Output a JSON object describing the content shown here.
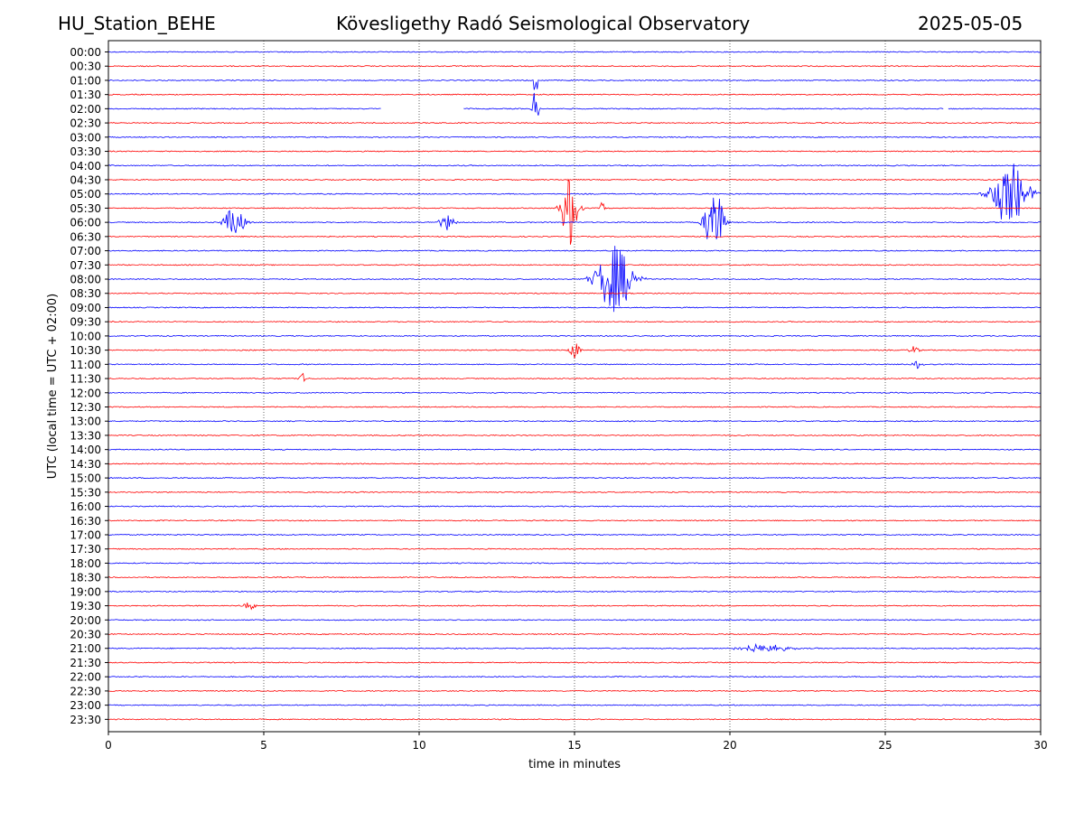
{
  "header": {
    "station": "HU_Station_BEHE",
    "observatory": "Kövesligethy Radó Seismological Observatory",
    "date": "2025-05-05"
  },
  "chart_data": {
    "type": "line",
    "title": "Kövesligethy Radó Seismological Observatory",
    "xlabel": "time in minutes",
    "ylabel": "UTC (local time = UTC + 02:00)",
    "xlim": [
      0,
      30
    ],
    "x_ticks": [
      0,
      5,
      10,
      15,
      20,
      25,
      30
    ],
    "x_grid": "dotted vertical at 5, 10, 15, 20, 25",
    "row_labels": [
      "00:00",
      "00:30",
      "01:00",
      "01:30",
      "02:00",
      "02:30",
      "03:00",
      "03:30",
      "04:00",
      "04:30",
      "05:00",
      "05:30",
      "06:00",
      "06:30",
      "07:00",
      "07:30",
      "08:00",
      "08:30",
      "09:00",
      "09:30",
      "10:00",
      "10:30",
      "11:00",
      "11:30",
      "12:00",
      "12:30",
      "13:00",
      "13:30",
      "14:00",
      "14:30",
      "15:00",
      "15:30",
      "16:00",
      "16:30",
      "17:00",
      "17:30",
      "18:00",
      "18:30",
      "19:00",
      "19:30",
      "20:00",
      "20:30",
      "21:00",
      "21:30",
      "22:00",
      "22:30",
      "23:00",
      "23:30"
    ],
    "row_colors": [
      "#0000ff",
      "#ff0000"
    ],
    "data_gaps": [
      {
        "row": "02:00",
        "from_min": 8.8,
        "to_min": 11.4
      },
      {
        "row": "02:00",
        "from_min": 26.9,
        "to_min": 27.0
      }
    ],
    "events": [
      {
        "row": "01:00",
        "start_min": 13.65,
        "end_min": 13.85,
        "amplitude": 1.7
      },
      {
        "row": "02:00",
        "start_min": 13.6,
        "end_min": 13.9,
        "amplitude": 1.7
      },
      {
        "row": "05:00",
        "start_min": 28.0,
        "end_min": 30.0,
        "amplitude": 2.3
      },
      {
        "row": "05:30",
        "start_min": 14.4,
        "end_min": 15.3,
        "amplitude": 2.8
      },
      {
        "row": "05:30",
        "start_min": 15.8,
        "end_min": 16.0,
        "amplitude": 1.0
      },
      {
        "row": "06:00",
        "start_min": 3.5,
        "end_min": 4.6,
        "amplitude": 1.1
      },
      {
        "row": "06:00",
        "start_min": 10.5,
        "end_min": 11.3,
        "amplitude": 0.6
      },
      {
        "row": "06:00",
        "start_min": 19.0,
        "end_min": 20.0,
        "amplitude": 2.7
      },
      {
        "row": "08:00",
        "start_min": 15.3,
        "end_min": 17.3,
        "amplitude": 2.4
      },
      {
        "row": "10:30",
        "start_min": 14.7,
        "end_min": 15.3,
        "amplitude": 0.6
      },
      {
        "row": "10:30",
        "start_min": 25.6,
        "end_min": 26.2,
        "amplitude": 0.3
      },
      {
        "row": "11:00",
        "start_min": 25.7,
        "end_min": 26.3,
        "amplitude": 0.3
      },
      {
        "row": "11:30",
        "start_min": 6.1,
        "end_min": 6.4,
        "amplitude": 0.4
      },
      {
        "row": "19:30",
        "start_min": 4.1,
        "end_min": 5.0,
        "amplitude": 0.3
      },
      {
        "row": "21:00",
        "start_min": 19.6,
        "end_min": 22.5,
        "amplitude": 0.3
      }
    ]
  }
}
